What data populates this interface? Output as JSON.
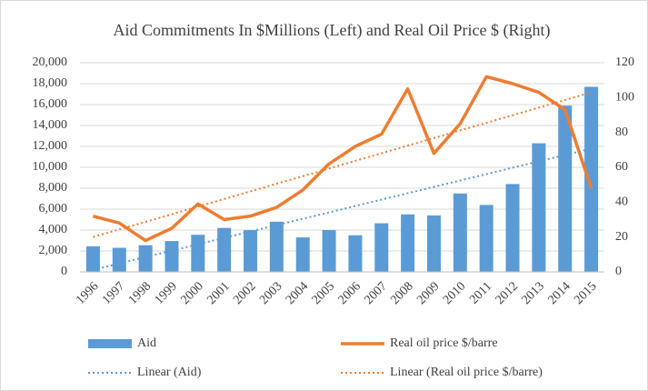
{
  "chart_data": {
    "type": "bar-line",
    "title": "Aid Commitments In $Millions (Left) and Real Oil Price $ (Right)",
    "categories": [
      "1996",
      "1997",
      "1998",
      "1999",
      "2000",
      "2001",
      "2002",
      "2003",
      "2004",
      "2005",
      "2006",
      "2007",
      "2008",
      "2009",
      "2010",
      "2011",
      "2012",
      "2013",
      "2014",
      "2015"
    ],
    "series": [
      {
        "name": "Aid",
        "type": "bar",
        "color": "#5b9bd5",
        "values": [
          2450,
          2300,
          2550,
          2950,
          3550,
          4200,
          4000,
          4800,
          3300,
          4000,
          3500,
          4650,
          5500,
          5400,
          7500,
          6400,
          8400,
          12300,
          15900,
          17700
        ]
      },
      {
        "name": "Real oil price $/barre",
        "type": "line",
        "color": "#ed7d31",
        "axis": "y2",
        "values": [
          32,
          28,
          18,
          25,
          39,
          30,
          32,
          37,
          47,
          62,
          72,
          79,
          105,
          68,
          85,
          112,
          108,
          103,
          93,
          48
        ]
      },
      {
        "name": "Linear (Aid)",
        "type": "line",
        "dotted": true,
        "color": "#5b9bd5",
        "values": [
          200,
          810,
          1420,
          2030,
          2640,
          3250,
          3860,
          4470,
          5080,
          5690,
          6300,
          6910,
          7520,
          8130,
          8740,
          9350,
          9960,
          10570,
          11180,
          11790
        ]
      },
      {
        "name": "Linear (Real oil price $/barre)",
        "type": "line",
        "dotted": true,
        "color": "#ed7d31",
        "axis": "y2",
        "values": [
          20,
          24.4,
          28.7,
          33.1,
          37.5,
          41.8,
          46.2,
          50.6,
          54.9,
          59.3,
          63.7,
          68.1,
          72.4,
          76.8,
          81.2,
          85.5,
          89.9,
          94.3,
          98.6,
          103
        ]
      }
    ],
    "ylim": [
      0,
      20000
    ],
    "yticks": [
      0,
      {
        "value": 2000,
        "label": "2,000"
      },
      {
        "value": 4000,
        "label": "4,000"
      },
      {
        "value": 6000,
        "label": "6,000"
      },
      {
        "value": 8000,
        "label": "8,000"
      },
      {
        "value": 10000,
        "label": "10,000"
      },
      {
        "value": 12000,
        "label": "12,000"
      },
      {
        "value": 14000,
        "label": "14,000"
      },
      {
        "value": 16000,
        "label": "16,000"
      },
      {
        "value": 18000,
        "label": "18,000"
      },
      {
        "value": 20000,
        "label": "20,000"
      }
    ],
    "y2lim": [
      0,
      120
    ],
    "y2ticks": [
      0,
      20,
      40,
      60,
      80,
      100,
      120
    ],
    "legend": "bottom"
  }
}
